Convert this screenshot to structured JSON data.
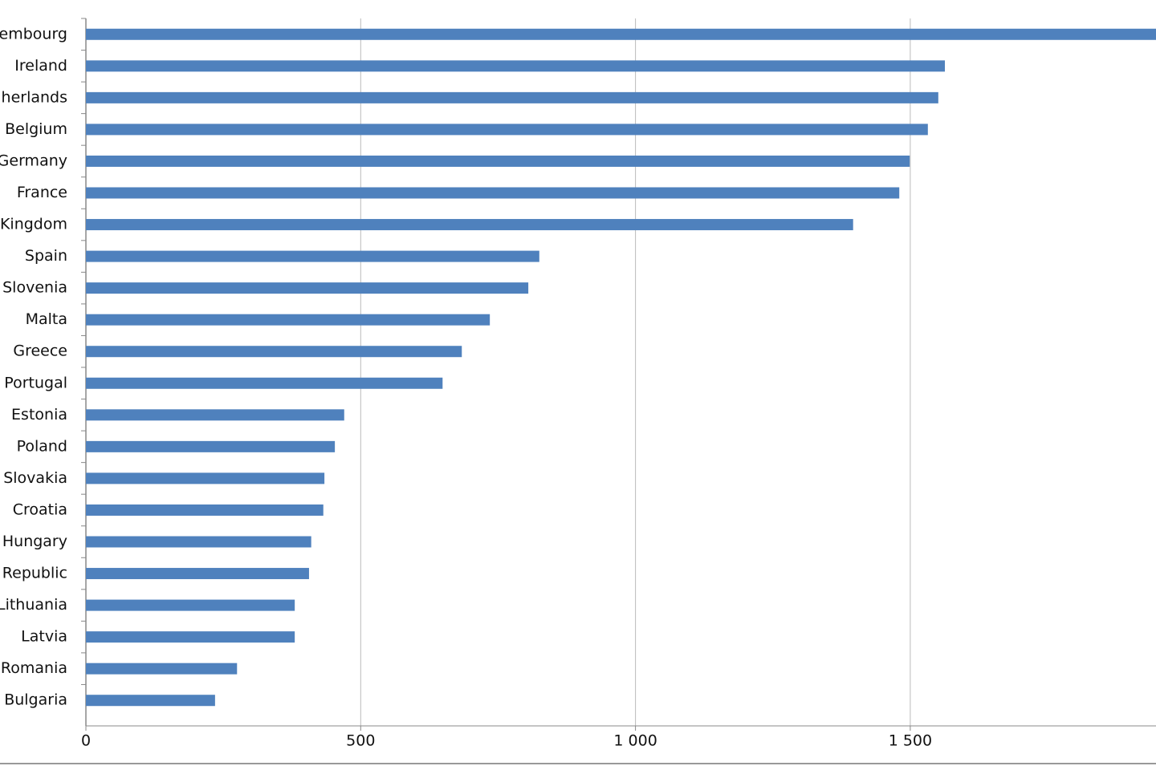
{
  "chart_data": {
    "type": "barh",
    "categories": [
      "embourg",
      "Ireland",
      "herlands",
      "Belgium",
      "Germany",
      "France",
      "Kingdom",
      "Spain",
      "Slovenia",
      "Malta",
      "Greece",
      "Portugal",
      "Estonia",
      "Poland",
      "Slovakia",
      "Croatia",
      "Hungary",
      "Republic",
      "Lithuania",
      "Latvia",
      "Romania",
      "Bulgaria"
    ],
    "values": [
      1950,
      1563,
      1551,
      1532,
      1499,
      1480,
      1396,
      825,
      805,
      735,
      684,
      649,
      470,
      453,
      434,
      432,
      410,
      406,
      380,
      380,
      275,
      235
    ],
    "color": "#4f81bd",
    "xlim": [
      0,
      2000
    ],
    "xticks": [
      0,
      500,
      {
        "value": 1000,
        "label": "1 000"
      },
      {
        "value": 1500,
        "label": "1 500"
      }
    ],
    "grid": true
  }
}
